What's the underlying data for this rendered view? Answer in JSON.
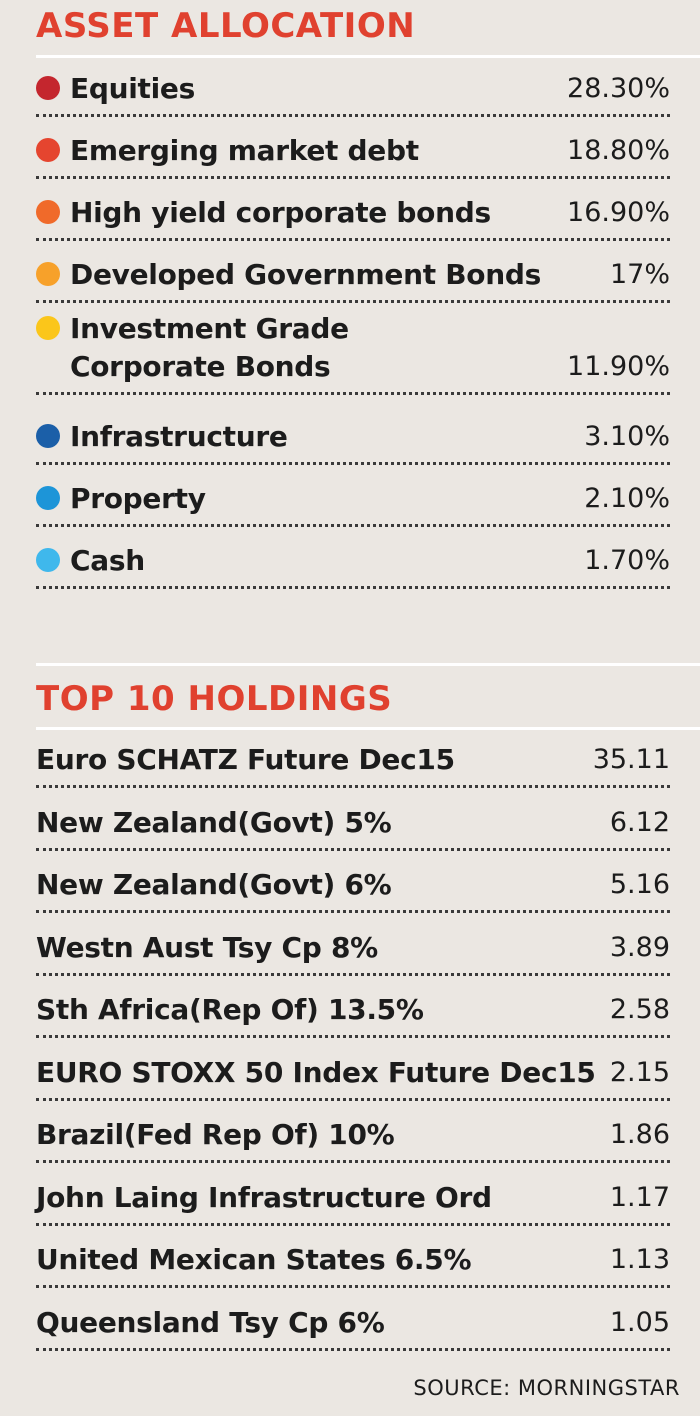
{
  "asset_allocation": {
    "title": "ASSET ALLOCATION",
    "items": [
      {
        "label": "Equities",
        "value": "28.30%",
        "color": "#c4262e"
      },
      {
        "label": "Emerging market debt",
        "value": "18.80%",
        "color": "#e5452f"
      },
      {
        "label": "High yield corporate bonds",
        "value": "16.90%",
        "color": "#f06a2a"
      },
      {
        "label": "Developed Government Bonds",
        "value": "17%",
        "color": "#f7a12a"
      },
      {
        "label": "Investment Grade\nCorporate Bonds",
        "value": "11.90%",
        "color": "#fbc61a"
      },
      {
        "label": "Infrastructure",
        "value": "3.10%",
        "color": "#1b5fa8"
      },
      {
        "label": "Property",
        "value": "2.10%",
        "color": "#1d95d8"
      },
      {
        "label": "Cash",
        "value": "1.70%",
        "color": "#3fb8ec"
      }
    ]
  },
  "top_holdings": {
    "title": "TOP 10 HOLDINGS",
    "items": [
      {
        "label": "Euro SCHATZ Future Dec15",
        "value": "35.11"
      },
      {
        "label": "New Zealand(Govt) 5%",
        "value": "6.12"
      },
      {
        "label": "New Zealand(Govt) 6%",
        "value": "5.16"
      },
      {
        "label": "Westn Aust Tsy Cp 8%",
        "value": "3.89"
      },
      {
        "label": "Sth Africa(Rep Of) 13.5%",
        "value": "2.58"
      },
      {
        "label": "EURO STOXX 50 Index Future Dec15",
        "value": "2.15"
      },
      {
        "label": "Brazil(Fed Rep Of) 10%",
        "value": "1.86"
      },
      {
        "label": "John Laing Infrastructure Ord",
        "value": "1.17"
      },
      {
        "label": "United Mexican States 6.5%",
        "value": "1.13"
      },
      {
        "label": "Queensland Tsy Cp 6%",
        "value": "1.05"
      }
    ]
  },
  "source": "SOURCE: MORNINGSTAR",
  "colors": {
    "title": "#e0412f",
    "background": "#ebe7e2"
  },
  "chart_data": [
    {
      "type": "table",
      "title": "ASSET ALLOCATION",
      "categories": [
        "Equities",
        "Emerging market debt",
        "High yield corporate bonds",
        "Developed Government Bonds",
        "Investment Grade Corporate Bonds",
        "Infrastructure",
        "Property",
        "Cash"
      ],
      "values": [
        28.3,
        18.8,
        16.9,
        17,
        11.9,
        3.1,
        2.1,
        1.7
      ]
    },
    {
      "type": "table",
      "title": "TOP 10 HOLDINGS",
      "categories": [
        "Euro SCHATZ Future Dec15",
        "New Zealand(Govt) 5%",
        "New Zealand(Govt) 6%",
        "Westn Aust Tsy Cp 8%",
        "Sth Africa(Rep Of) 13.5%",
        "EURO STOXX 50 Index Future Dec15",
        "Brazil(Fed Rep Of) 10%",
        "John Laing Infrastructure Ord",
        "United Mexican States 6.5%",
        "Queensland Tsy Cp 6%"
      ],
      "values": [
        35.11,
        6.12,
        5.16,
        3.89,
        2.58,
        2.15,
        1.86,
        1.17,
        1.13,
        1.05
      ]
    }
  ]
}
